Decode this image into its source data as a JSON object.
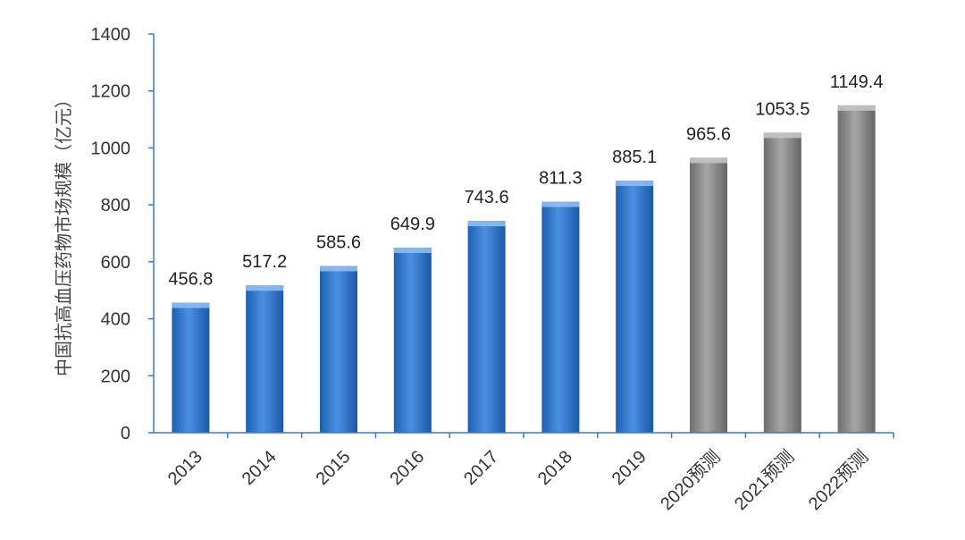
{
  "chart_data": {
    "type": "bar",
    "title": "",
    "xlabel": "",
    "ylabel": "中国抗高血压药物市场规模（亿元）",
    "categories": [
      "2013",
      "2014",
      "2015",
      "2016",
      "2017",
      "2018",
      "2019",
      "2020预测",
      "2021预测",
      "2022预测"
    ],
    "values": [
      456.8,
      517.2,
      585.6,
      649.9,
      743.6,
      811.3,
      885.1,
      965.6,
      1053.5,
      1149.4
    ],
    "data_labels": [
      "456.8",
      "517.2",
      "585.6",
      "649.9",
      "743.6",
      "811.3",
      "885.1",
      "965.6",
      "1053.5",
      "1149.4"
    ],
    "forecast": [
      false,
      false,
      false,
      false,
      false,
      false,
      false,
      true,
      true,
      true
    ],
    "ylim": [
      0,
      1400
    ],
    "yticks": [
      0,
      200,
      400,
      600,
      800,
      1000,
      1200,
      1400
    ],
    "ytick_labels": [
      "0",
      "200",
      "400",
      "600",
      "800",
      "1000",
      "1200",
      "1400"
    ],
    "grid": false,
    "legend": "none",
    "colors": {
      "actual": "#3a7fd5",
      "forecast": "#8a8a8a",
      "axis": "#3b78c6"
    }
  }
}
